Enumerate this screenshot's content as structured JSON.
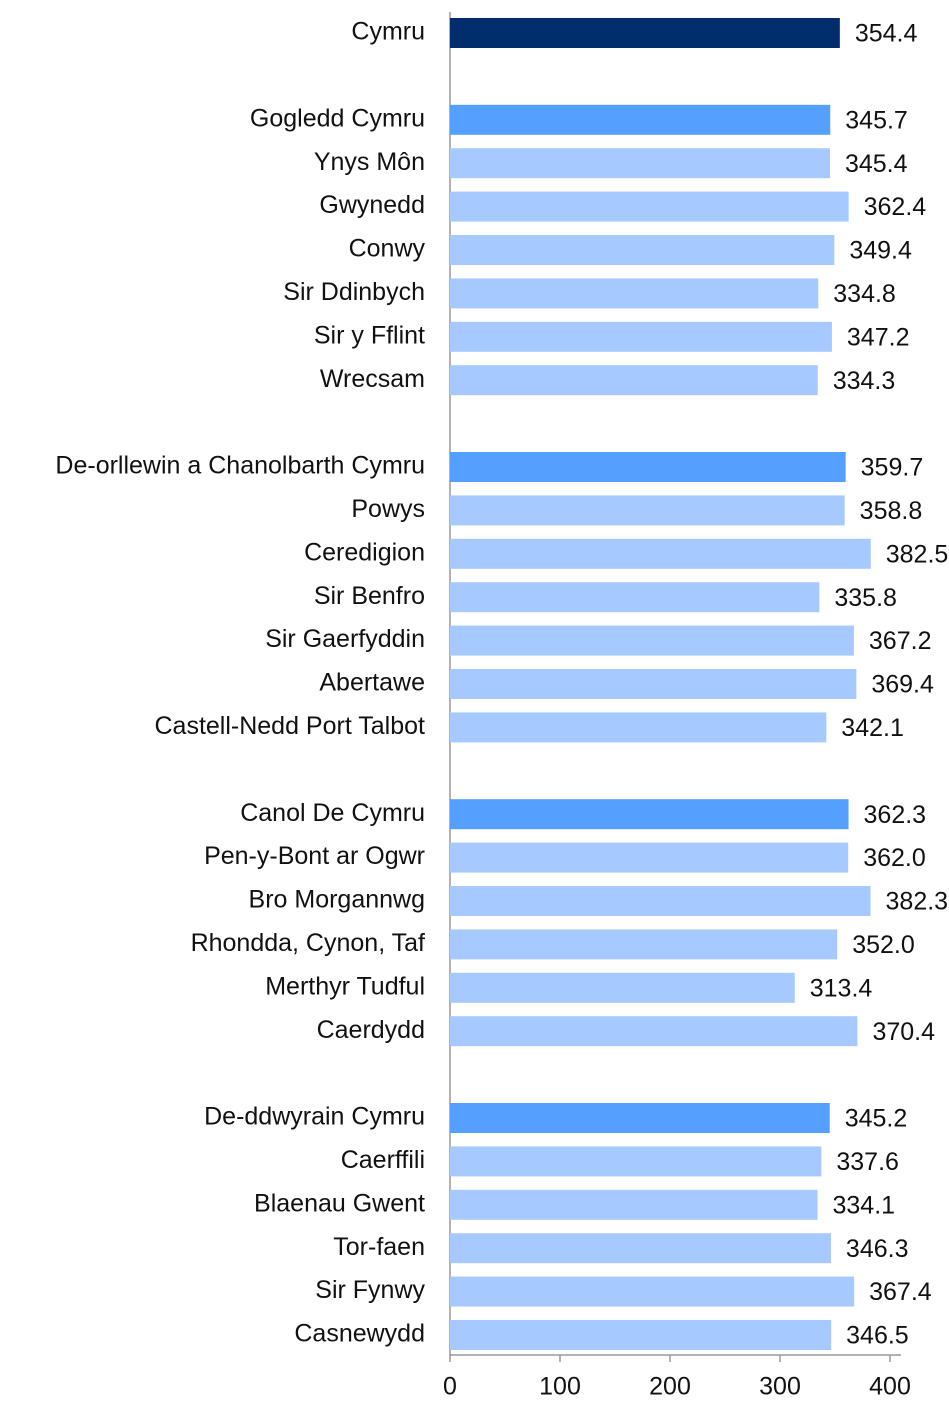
{
  "chart_data": {
    "type": "barh",
    "categories": [
      "Cymru",
      null,
      "Gogledd Cymru",
      "Ynys Môn",
      "Gwynedd",
      "Conwy",
      "Sir Ddinbych",
      "Sir y Fflint",
      "Wrecsam",
      null,
      "De-orllewin a Chanolbarth Cymru",
      "Powys",
      "Ceredigion",
      "Sir Benfro",
      "Sir Gaerfyddin",
      "Abertawe",
      "Castell-Nedd Port Talbot",
      null,
      "Canol De Cymru",
      "Pen-y-Bont ar Ogwr",
      "Bro Morgannwg",
      "Rhondda, Cynon, Taf",
      "Merthyr Tudful",
      "Caerdydd",
      null,
      "De-ddwyrain Cymru",
      "Caerffili",
      "Blaenau Gwent",
      "Tor-faen",
      "Sir Fynwy",
      "Casnewydd"
    ],
    "values": [
      354.4,
      null,
      345.7,
      345.4,
      362.4,
      349.4,
      334.8,
      347.2,
      334.3,
      null,
      359.7,
      358.8,
      382.5,
      335.8,
      367.2,
      369.4,
      342.1,
      null,
      362.3,
      362.0,
      382.3,
      352.0,
      313.4,
      370.4,
      null,
      345.2,
      337.6,
      334.1,
      346.3,
      367.4,
      346.5
    ],
    "value_labels": [
      "354.4",
      null,
      "345.7",
      "345.4",
      "362.4",
      "349.4",
      "334.8",
      "347.2",
      "334.3",
      null,
      "359.7",
      "358.8",
      "382.5",
      "335.8",
      "367.2",
      "369.4",
      "342.1",
      null,
      "362.3",
      "362.0",
      "382.3",
      "352.0",
      "313.4",
      "370.4",
      null,
      "345.2",
      "337.6",
      "334.1",
      "346.3",
      "367.4",
      "346.5"
    ],
    "colors": [
      "#002d6b",
      null,
      "#559fff",
      "#a6caff",
      "#a6caff",
      "#a6caff",
      "#a6caff",
      "#a6caff",
      "#a6caff",
      null,
      "#559fff",
      "#a6caff",
      "#a6caff",
      "#a6caff",
      "#a6caff",
      "#a6caff",
      "#a6caff",
      null,
      "#559fff",
      "#a6caff",
      "#a6caff",
      "#a6caff",
      "#a6caff",
      "#a6caff",
      null,
      "#559fff",
      "#a6caff",
      "#a6caff",
      "#a6caff",
      "#a6caff",
      "#a6caff"
    ],
    "xlim": [
      0,
      410
    ],
    "xticks": [
      0,
      100,
      200,
      300,
      400
    ]
  }
}
